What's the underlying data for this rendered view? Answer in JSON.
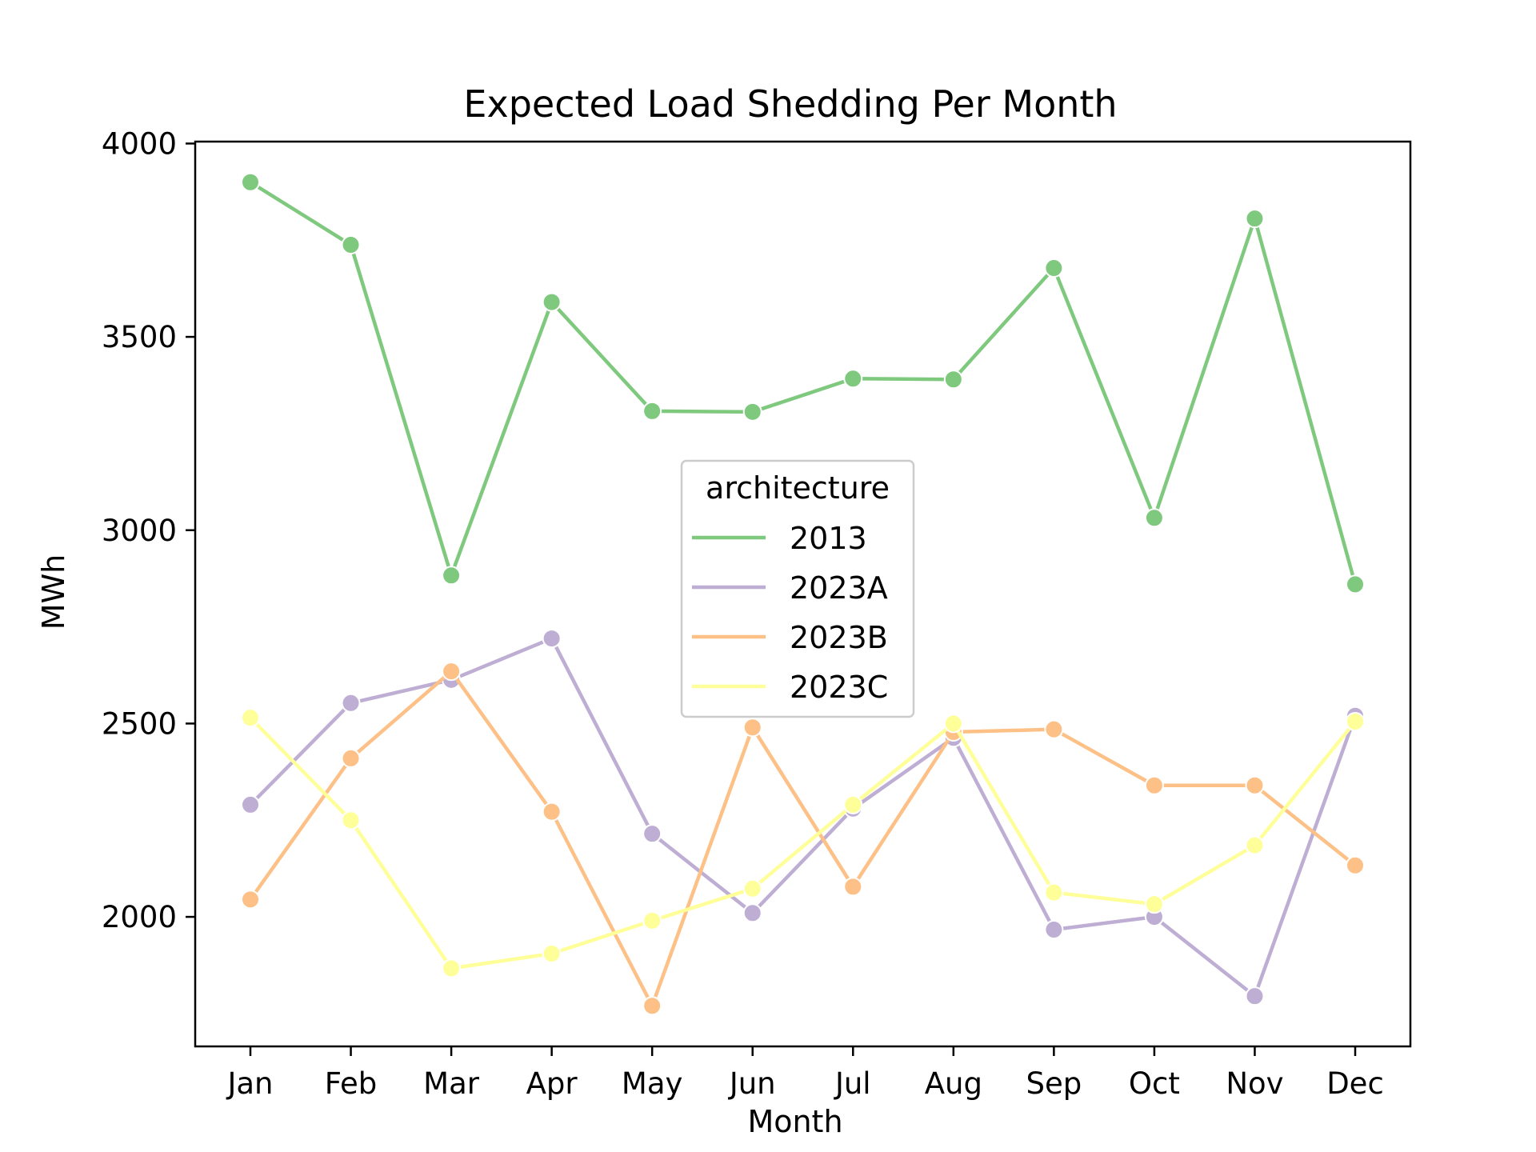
{
  "chart_data": {
    "type": "line",
    "title": "Expected Load Shedding Per Month",
    "xlabel": "Month",
    "ylabel": "MWh",
    "categories": [
      "Jan",
      "Feb",
      "Mar",
      "Apr",
      "May",
      "Jun",
      "Jul",
      "Aug",
      "Sep",
      "Oct",
      "Nov",
      "Dec"
    ],
    "ylim": [
      1665,
      4005
    ],
    "yticks": [
      2000,
      2500,
      3000,
      3500,
      4000
    ],
    "grid": false,
    "legend": {
      "title": "architecture",
      "placement": "center"
    },
    "series": [
      {
        "name": "2013",
        "color": "#7fc97f",
        "values": [
          3900,
          3738,
          2883,
          3590,
          3308,
          3306,
          3392,
          3390,
          3678,
          3032,
          3806,
          2860
        ]
      },
      {
        "name": "2023A",
        "color": "#beaed4",
        "values": [
          2290,
          2553,
          2613,
          2720,
          2215,
          2010,
          2280,
          2463,
          1967,
          2000,
          1795,
          2520
        ]
      },
      {
        "name": "2023B",
        "color": "#fdc086",
        "values": [
          2045,
          2410,
          2635,
          2272,
          1770,
          2490,
          2078,
          2478,
          2485,
          2340,
          2340,
          2133
        ]
      },
      {
        "name": "2023C",
        "color": "#ffff99",
        "values": [
          2515,
          2250,
          1867,
          1905,
          1990,
          2073,
          2290,
          2500,
          2063,
          2033,
          2185,
          2505
        ]
      }
    ]
  }
}
